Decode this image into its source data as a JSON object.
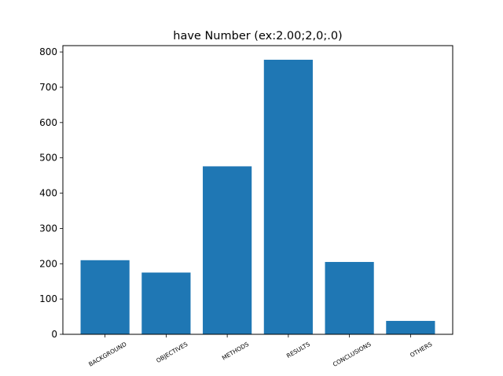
{
  "chart_data": {
    "type": "bar",
    "title": "have Number (ex:2.00;2,0;.0)",
    "xlabel": "",
    "ylabel": "",
    "categories": [
      "BACKGROUND",
      "OBJECTIVES",
      "METHODS",
      "RESULTS",
      "CONCLUSIONS",
      "OTHERS"
    ],
    "values": [
      210,
      175,
      476,
      778,
      205,
      38
    ],
    "ylim": [
      0,
      818
    ],
    "yticks": [
      0,
      100,
      200,
      300,
      400,
      500,
      600,
      700,
      800
    ],
    "bar_color": "#1f77b4",
    "grid": false,
    "legend": "none"
  }
}
